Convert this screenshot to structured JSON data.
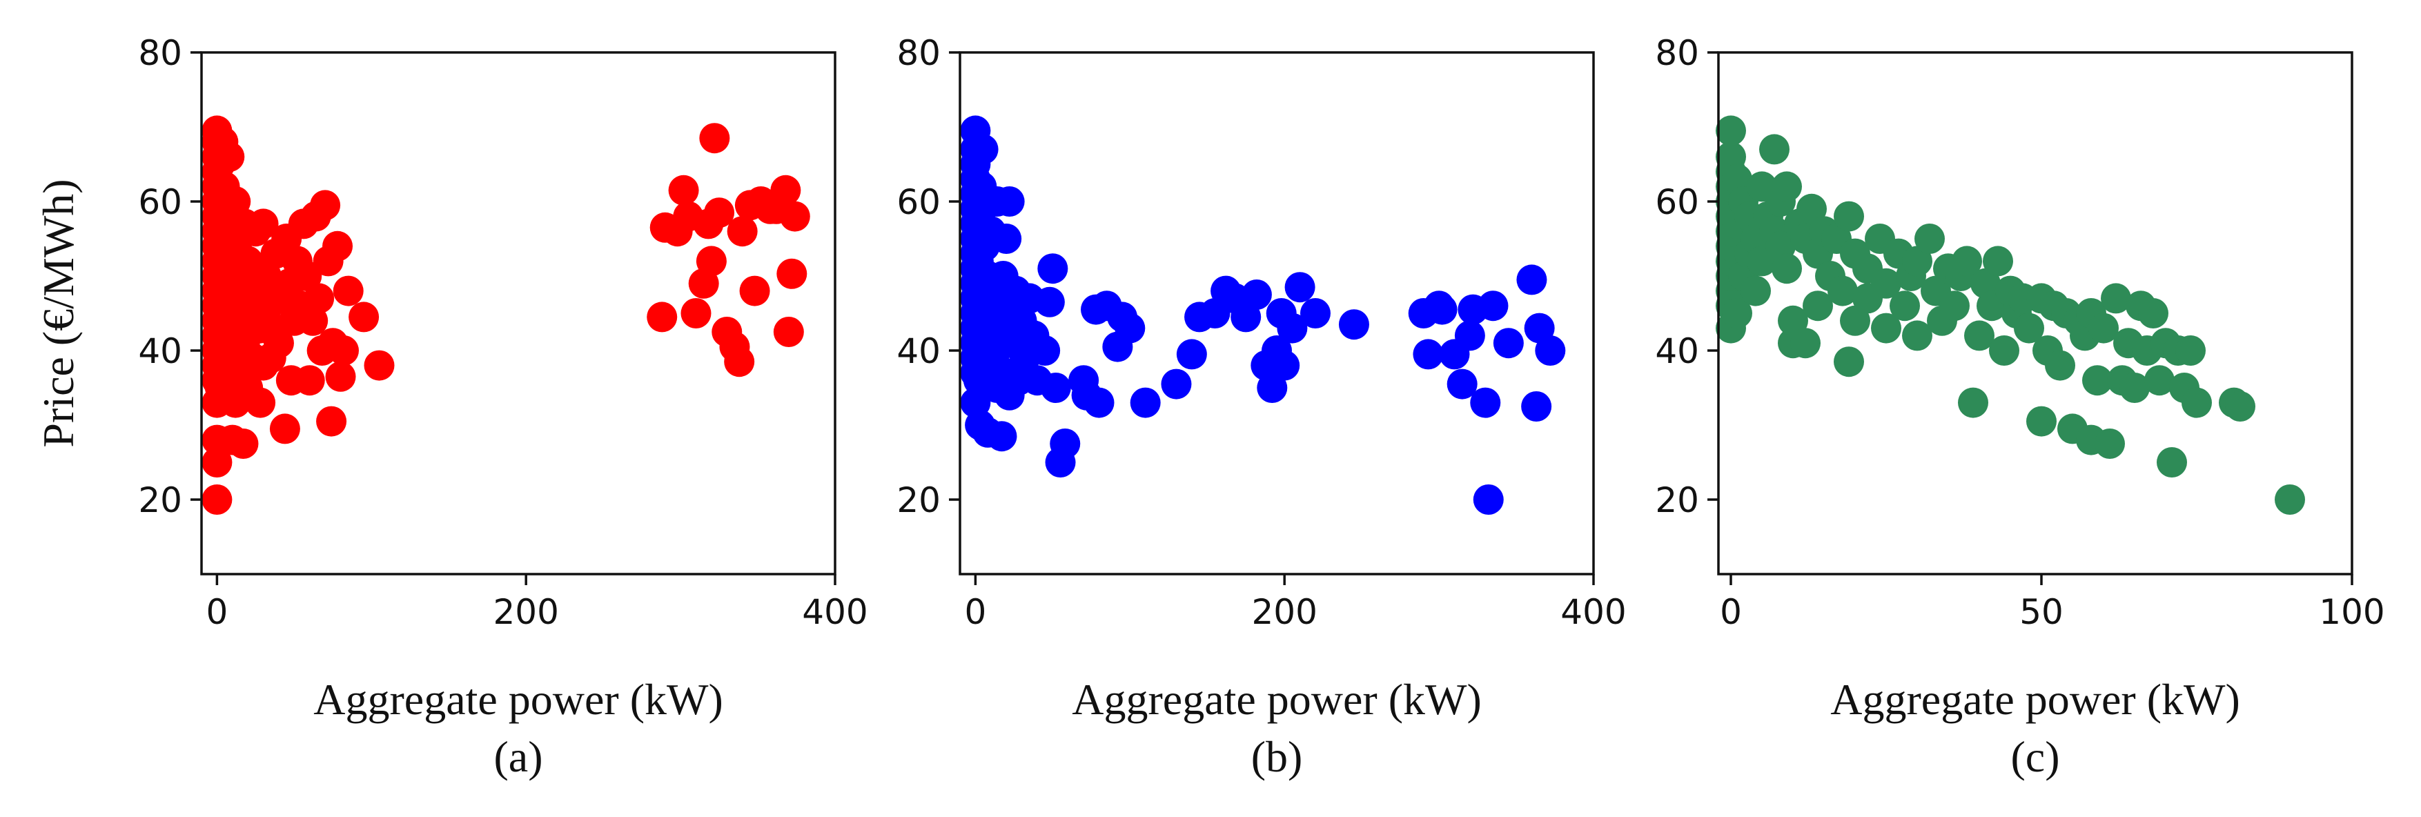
{
  "chart_data": [
    {
      "type": "scatter",
      "panel_label": "(a)",
      "xlabel": "Aggregate power (kW)",
      "ylabel": "Price (€/MWh)",
      "xlim": [
        -10,
        400
      ],
      "ylim": [
        10,
        80
      ],
      "xticks": [
        0,
        200,
        400
      ],
      "yticks": [
        20,
        40,
        60,
        80
      ],
      "grid": false,
      "color": "#ff0000",
      "points": [
        [
          0,
          20
        ],
        [
          0,
          25
        ],
        [
          0,
          28
        ],
        [
          0,
          33
        ],
        [
          0,
          36
        ],
        [
          0,
          38
        ],
        [
          0,
          40
        ],
        [
          0,
          42
        ],
        [
          0,
          44
        ],
        [
          0,
          46
        ],
        [
          0,
          48
        ],
        [
          0,
          50
        ],
        [
          0,
          52
        ],
        [
          0,
          54
        ],
        [
          0,
          56
        ],
        [
          0,
          58
        ],
        [
          0,
          60
        ],
        [
          0,
          62
        ],
        [
          0,
          64
        ],
        [
          0,
          66
        ],
        [
          0,
          68
        ],
        [
          0,
          69.5
        ],
        [
          2,
          35
        ],
        [
          2,
          45
        ],
        [
          2,
          55
        ],
        [
          2,
          65
        ],
        [
          3,
          38
        ],
        [
          3,
          50
        ],
        [
          3,
          60
        ],
        [
          4,
          42
        ],
        [
          4,
          57
        ],
        [
          4,
          68
        ],
        [
          5,
          34
        ],
        [
          5,
          47
        ],
        [
          5,
          62
        ],
        [
          6,
          40
        ],
        [
          6,
          52
        ],
        [
          7,
          36
        ],
        [
          7,
          58
        ],
        [
          8,
          44
        ],
        [
          8,
          66
        ],
        [
          9,
          49
        ],
        [
          10,
          38
        ],
        [
          10,
          55
        ],
        [
          10,
          28
        ],
        [
          12,
          33
        ],
        [
          12,
          42
        ],
        [
          12,
          60
        ],
        [
          14,
          46
        ],
        [
          14,
          53
        ],
        [
          15,
          37
        ],
        [
          16,
          49
        ],
        [
          17,
          27.5
        ],
        [
          18,
          41
        ],
        [
          18,
          57
        ],
        [
          20,
          35
        ],
        [
          20,
          52
        ],
        [
          22,
          45
        ],
        [
          23,
          39
        ],
        [
          25,
          56
        ],
        [
          26,
          48
        ],
        [
          28,
          33
        ],
        [
          28,
          43
        ],
        [
          30,
          57
        ],
        [
          30,
          38
        ],
        [
          32,
          50
        ],
        [
          33,
          46
        ],
        [
          35,
          39
        ],
        [
          36,
          43
        ],
        [
          38,
          53
        ],
        [
          40,
          41
        ],
        [
          42,
          47
        ],
        [
          44,
          29.5
        ],
        [
          45,
          55
        ],
        [
          47,
          49
        ],
        [
          48,
          36
        ],
        [
          50,
          44
        ],
        [
          52,
          52
        ],
        [
          54,
          46
        ],
        [
          56,
          57
        ],
        [
          58,
          50
        ],
        [
          60,
          36
        ],
        [
          62,
          44
        ],
        [
          64,
          58
        ],
        [
          66,
          47
        ],
        [
          68,
          40
        ],
        [
          70,
          59.5
        ],
        [
          72,
          52
        ],
        [
          74,
          30.5
        ],
        [
          75,
          41
        ],
        [
          78,
          54
        ],
        [
          80,
          36.5
        ],
        [
          82,
          40
        ],
        [
          85,
          48
        ],
        [
          95,
          44.5
        ],
        [
          105,
          38
        ],
        [
          288,
          44.5
        ],
        [
          290,
          56.5
        ],
        [
          298,
          56
        ],
        [
          302,
          61.5
        ],
        [
          305,
          58
        ],
        [
          310,
          45
        ],
        [
          315,
          49
        ],
        [
          318,
          57
        ],
        [
          320,
          52
        ],
        [
          322,
          68.5
        ],
        [
          325,
          58.5
        ],
        [
          330,
          42.5
        ],
        [
          335,
          40.5
        ],
        [
          338,
          38.5
        ],
        [
          340,
          56
        ],
        [
          345,
          59.5
        ],
        [
          348,
          48
        ],
        [
          352,
          60
        ],
        [
          358,
          59
        ],
        [
          362,
          59
        ],
        [
          368,
          61.5
        ],
        [
          370,
          42.5
        ],
        [
          372,
          50.3
        ],
        [
          374,
          58
        ]
      ]
    },
    {
      "type": "scatter",
      "panel_label": "(b)",
      "xlabel": "Aggregate power (kW)",
      "ylabel": "",
      "xlim": [
        -10,
        400
      ],
      "ylim": [
        10,
        80
      ],
      "xticks": [
        0,
        200,
        400
      ],
      "yticks": [
        20,
        40,
        60,
        80
      ],
      "grid": false,
      "color": "#0000ff",
      "points": [
        [
          0,
          33
        ],
        [
          0,
          37
        ],
        [
          0,
          39
        ],
        [
          0,
          41
        ],
        [
          0,
          43
        ],
        [
          0,
          45
        ],
        [
          0,
          47
        ],
        [
          0,
          49
        ],
        [
          0,
          51
        ],
        [
          0,
          53
        ],
        [
          0,
          55
        ],
        [
          0,
          57
        ],
        [
          0,
          59
        ],
        [
          0,
          61
        ],
        [
          0,
          63
        ],
        [
          0,
          65
        ],
        [
          0,
          67
        ],
        [
          0,
          69.5
        ],
        [
          2,
          36
        ],
        [
          2,
          44
        ],
        [
          2,
          52
        ],
        [
          3,
          30
        ],
        [
          3,
          48
        ],
        [
          3,
          58
        ],
        [
          4,
          40
        ],
        [
          4,
          62
        ],
        [
          5,
          46
        ],
        [
          5,
          67
        ],
        [
          6,
          38
        ],
        [
          6,
          54
        ],
        [
          7,
          42
        ],
        [
          8,
          29
        ],
        [
          8,
          50
        ],
        [
          9,
          36
        ],
        [
          10,
          44
        ],
        [
          10,
          56
        ],
        [
          12,
          39
        ],
        [
          12,
          47
        ],
        [
          14,
          35
        ],
        [
          14,
          60
        ],
        [
          16,
          42
        ],
        [
          17,
          28.5
        ],
        [
          18,
          50
        ],
        [
          19,
          37
        ],
        [
          20,
          45
        ],
        [
          20,
          55
        ],
        [
          22,
          34
        ],
        [
          22,
          60
        ],
        [
          24,
          41
        ],
        [
          26,
          48
        ],
        [
          28,
          36
        ],
        [
          30,
          44
        ],
        [
          32,
          39
        ],
        [
          35,
          47
        ],
        [
          38,
          42
        ],
        [
          40,
          36
        ],
        [
          45,
          40
        ],
        [
          48,
          46.5
        ],
        [
          50,
          51
        ],
        [
          52,
          35
        ],
        [
          55,
          25
        ],
        [
          58,
          27.5
        ],
        [
          70,
          36
        ],
        [
          72,
          34
        ],
        [
          78,
          45.5
        ],
        [
          80,
          33
        ],
        [
          85,
          46
        ],
        [
          92,
          40.5
        ],
        [
          95,
          44.5
        ],
        [
          100,
          43
        ],
        [
          110,
          33
        ],
        [
          130,
          35.5
        ],
        [
          140,
          39.5
        ],
        [
          145,
          44.5
        ],
        [
          155,
          45
        ],
        [
          162,
          48
        ],
        [
          168,
          47
        ],
        [
          175,
          44.5
        ],
        [
          182,
          47.5
        ],
        [
          188,
          38
        ],
        [
          192,
          35
        ],
        [
          195,
          40
        ],
        [
          198,
          45
        ],
        [
          200,
          38
        ],
        [
          205,
          43
        ],
        [
          210,
          48.5
        ],
        [
          220,
          45
        ],
        [
          245,
          43.5
        ],
        [
          290,
          45
        ],
        [
          293,
          39.5
        ],
        [
          300,
          46
        ],
        [
          302,
          45.5
        ],
        [
          310,
          39.5
        ],
        [
          315,
          35.5
        ],
        [
          320,
          42
        ],
        [
          322,
          45.5
        ],
        [
          330,
          33
        ],
        [
          332,
          20
        ],
        [
          335,
          46
        ],
        [
          345,
          41
        ],
        [
          360,
          49.5
        ],
        [
          363,
          32.5
        ],
        [
          365,
          43
        ],
        [
          372,
          40
        ]
      ]
    },
    {
      "type": "scatter",
      "panel_label": "(c)",
      "xlabel": "Aggregate power (kW)",
      "ylabel": "",
      "xlim": [
        -2,
        100
      ],
      "ylim": [
        10,
        80
      ],
      "xticks": [
        0,
        50,
        100
      ],
      "yticks": [
        20,
        40,
        60,
        80
      ],
      "grid": false,
      "color": "#2e8b57",
      "points": [
        [
          0,
          43
        ],
        [
          0,
          46
        ],
        [
          0,
          48
        ],
        [
          0,
          50
        ],
        [
          0,
          52
        ],
        [
          0,
          54
        ],
        [
          0,
          56
        ],
        [
          0,
          58
        ],
        [
          0,
          60
        ],
        [
          0,
          62
        ],
        [
          0,
          64
        ],
        [
          0,
          66
        ],
        [
          0,
          69.5
        ],
        [
          1,
          45
        ],
        [
          1,
          57
        ],
        [
          1,
          63
        ],
        [
          2,
          50
        ],
        [
          2,
          60
        ],
        [
          3,
          53
        ],
        [
          3,
          58
        ],
        [
          4,
          48
        ],
        [
          4,
          55
        ],
        [
          5,
          52
        ],
        [
          5,
          62
        ],
        [
          7,
          67
        ],
        [
          6,
          58
        ],
        [
          7,
          56
        ],
        [
          8,
          54
        ],
        [
          8,
          60
        ],
        [
          9,
          51
        ],
        [
          9,
          62
        ],
        [
          10,
          41
        ],
        [
          10,
          44
        ],
        [
          11,
          57
        ],
        [
          12,
          55
        ],
        [
          12,
          41
        ],
        [
          13,
          59
        ],
        [
          14,
          46
        ],
        [
          14,
          53
        ],
        [
          15,
          56
        ],
        [
          16,
          50
        ],
        [
          17,
          55
        ],
        [
          18,
          48
        ],
        [
          19,
          58
        ],
        [
          19,
          38.5
        ],
        [
          20,
          44
        ],
        [
          20,
          53
        ],
        [
          22,
          51
        ],
        [
          22,
          47
        ],
        [
          24,
          55
        ],
        [
          25,
          49
        ],
        [
          25,
          43
        ],
        [
          27,
          53
        ],
        [
          28,
          46
        ],
        [
          29,
          50
        ],
        [
          30,
          52
        ],
        [
          30,
          42
        ],
        [
          32,
          55
        ],
        [
          33,
          48
        ],
        [
          34,
          44
        ],
        [
          35,
          51
        ],
        [
          36,
          46
        ],
        [
          37,
          50
        ],
        [
          38,
          52
        ],
        [
          39,
          33
        ],
        [
          40,
          42
        ],
        [
          41,
          49
        ],
        [
          42,
          46
        ],
        [
          43,
          52
        ],
        [
          44,
          40
        ],
        [
          45,
          48
        ],
        [
          46,
          45
        ],
        [
          47,
          47
        ],
        [
          48,
          43
        ],
        [
          50,
          30.5
        ],
        [
          50,
          47
        ],
        [
          51,
          40
        ],
        [
          52,
          46
        ],
        [
          53,
          38
        ],
        [
          54,
          45
        ],
        [
          55,
          29.5
        ],
        [
          56,
          44
        ],
        [
          57,
          42
        ],
        [
          58,
          28
        ],
        [
          58,
          45
        ],
        [
          59,
          36
        ],
        [
          60,
          43
        ],
        [
          61,
          27.5
        ],
        [
          62,
          47
        ],
        [
          63,
          36
        ],
        [
          64,
          41
        ],
        [
          65,
          35
        ],
        [
          66,
          46
        ],
        [
          67,
          40
        ],
        [
          68,
          45
        ],
        [
          69,
          36
        ],
        [
          70,
          41
        ],
        [
          71,
          25
        ],
        [
          72,
          40
        ],
        [
          73,
          35
        ],
        [
          74,
          40
        ],
        [
          75,
          33
        ],
        [
          81,
          33
        ],
        [
          82,
          32.5
        ],
        [
          90,
          20
        ]
      ]
    }
  ]
}
